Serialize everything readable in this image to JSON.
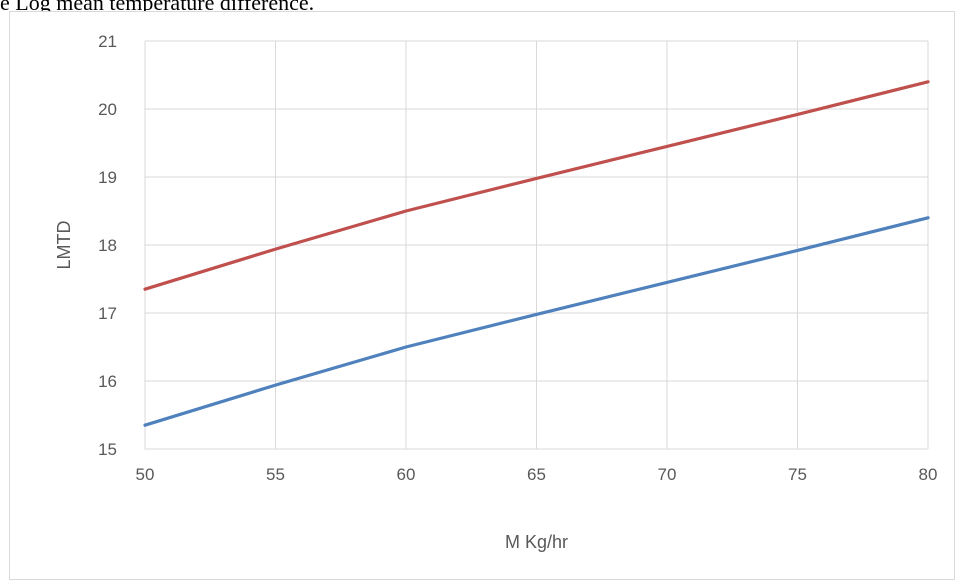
{
  "caption": "e Log mean temperature difference.",
  "chart_data": {
    "type": "line",
    "title": "",
    "xlabel": "M Kg/hr",
    "ylabel": "LMTD",
    "xlim": [
      50,
      80
    ],
    "ylim": [
      15,
      21
    ],
    "x_ticks": [
      50,
      55,
      60,
      65,
      70,
      75,
      80
    ],
    "y_ticks": [
      15,
      16,
      17,
      18,
      19,
      20,
      21
    ],
    "grid": true,
    "legend": "none",
    "series": [
      {
        "color": "#c0504d",
        "x": [
          50,
          55,
          60,
          65,
          70,
          75,
          80
        ],
        "y": [
          17.35,
          17.94,
          18.5,
          18.98,
          19.45,
          19.92,
          20.4
        ]
      },
      {
        "color": "#4f81bd",
        "x": [
          50,
          55,
          60,
          65,
          70,
          75,
          80
        ],
        "y": [
          15.35,
          15.94,
          16.5,
          16.98,
          17.45,
          17.92,
          18.4
        ]
      }
    ]
  }
}
